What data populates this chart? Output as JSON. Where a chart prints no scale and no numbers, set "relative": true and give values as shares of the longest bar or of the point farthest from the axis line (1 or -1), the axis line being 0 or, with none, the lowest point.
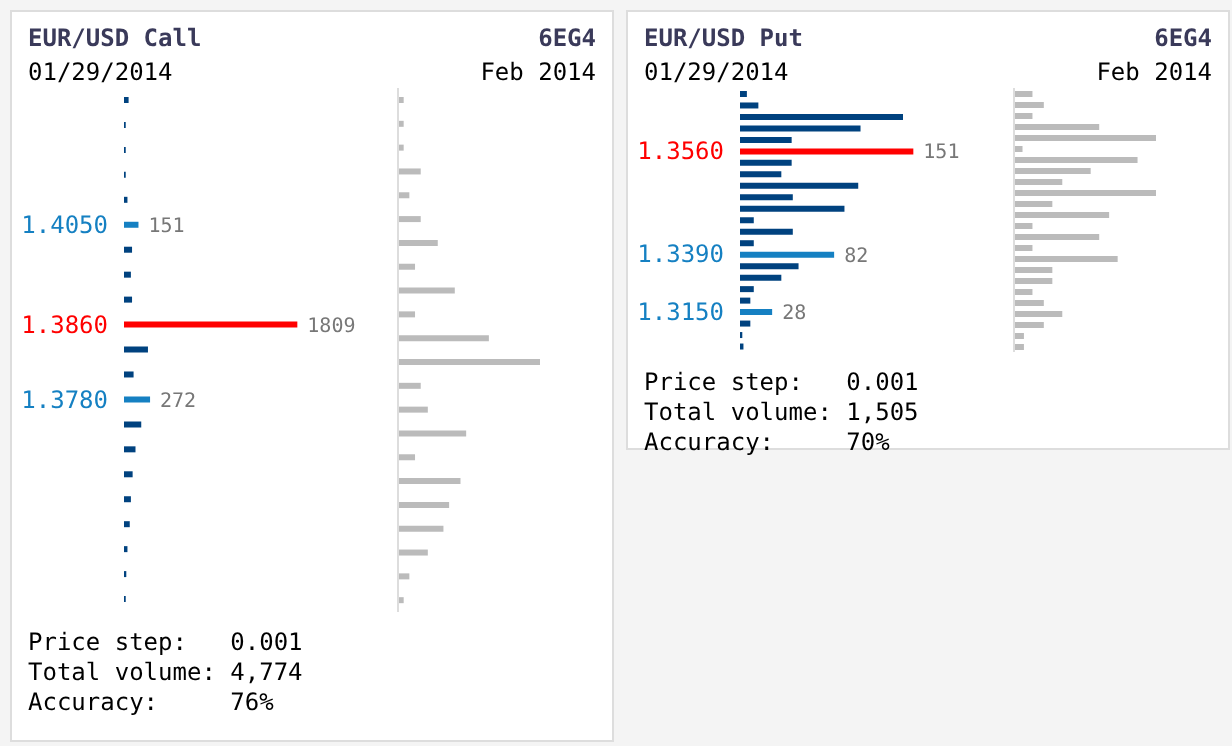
{
  "chart_data": [
    {
      "type": "bar",
      "orientation": "horizontal",
      "title": "EUR/USD Call",
      "subtitle": "01/29/2014",
      "annotations": [
        "6EG4",
        "Feb 2014",
        "Price step:   0.001",
        "Total volume: 4,774",
        "Accuracy:     76%"
      ],
      "tick_labels": "y",
      "categories": [
        null,
        null,
        null,
        null,
        null,
        "1.4050",
        null,
        null,
        null,
        "1.3860",
        null,
        null,
        "1.3780",
        null,
        null,
        null,
        null,
        null,
        null,
        null,
        null
      ],
      "values": [
        48,
        18,
        18,
        18,
        36,
        151,
        84,
        72,
        84,
        1809,
        250,
        100,
        272,
        180,
        120,
        90,
        72,
        60,
        36,
        24,
        18
      ],
      "colors": [
        "#00427f",
        "#00427f",
        "#00427f",
        "#00427f",
        "#00427f",
        "#1580c2",
        "#00427f",
        "#00427f",
        "#00427f",
        "#ff0000",
        "#00427f",
        "#00427f",
        "#1580c2",
        "#00427f",
        "#00427f",
        "#00427f",
        "#00427f",
        "#00427f",
        "#00427f",
        "#00427f",
        "#00427f"
      ],
      "value_labels": [
        null,
        null,
        null,
        null,
        null,
        "151",
        null,
        null,
        null,
        "1809",
        null,
        null,
        "272",
        null,
        null,
        null,
        null,
        null,
        null,
        null,
        null
      ]
    },
    {
      "type": "bar",
      "orientation": "horizontal",
      "relative": true,
      "tick_labels": false,
      "color": "#bbbbbb",
      "categories": [
        null,
        null,
        null,
        null,
        null,
        null,
        null,
        null,
        null,
        null,
        null,
        null,
        null,
        null,
        null,
        null,
        null,
        null,
        null,
        null,
        null,
        null
      ],
      "values": [
        0.04,
        0.04,
        0.04,
        0.16,
        0.08,
        0.16,
        0.28,
        0.12,
        0.4,
        0.12,
        0.64,
        1,
        0.16,
        0.21,
        0.48,
        0.12,
        0.44,
        0.36,
        0.32,
        0.21,
        0.08,
        0.04
      ]
    },
    {
      "type": "bar",
      "orientation": "horizontal",
      "title": "EUR/USD Put",
      "subtitle": "01/29/2014",
      "annotations": [
        "6EG4",
        "Feb 2014",
        "Price step:   0.001",
        "Total volume: 1,505",
        "Accuracy:     70%"
      ],
      "tick_labels": "y",
      "categories": [
        null,
        null,
        null,
        null,
        null,
        "1.3560",
        null,
        null,
        null,
        null,
        null,
        null,
        null,
        null,
        "1.3390",
        null,
        null,
        null,
        null,
        "1.3150",
        null,
        null,
        null
      ],
      "values": [
        6,
        16,
        142,
        105,
        45,
        151,
        45,
        36,
        103,
        46,
        91,
        12,
        46,
        12,
        82,
        51,
        36,
        12,
        9,
        28,
        9,
        2,
        3
      ],
      "colors": [
        "#00427f",
        "#00427f",
        "#00427f",
        "#00427f",
        "#00427f",
        "#ff0000",
        "#00427f",
        "#00427f",
        "#00427f",
        "#00427f",
        "#00427f",
        "#00427f",
        "#00427f",
        "#00427f",
        "#1580c2",
        "#00427f",
        "#00427f",
        "#00427f",
        "#00427f",
        "#1580c2",
        "#00427f",
        "#00427f",
        "#00427f"
      ],
      "value_labels": [
        null,
        null,
        null,
        null,
        null,
        "151",
        null,
        null,
        null,
        null,
        null,
        null,
        null,
        null,
        "82",
        null,
        null,
        null,
        null,
        "28",
        null,
        null,
        null
      ]
    },
    {
      "type": "bar",
      "orientation": "horizontal",
      "relative": true,
      "tick_labels": false,
      "color": "#bbbbbb",
      "categories": [
        null,
        null,
        null,
        null,
        null,
        null,
        null,
        null,
        null,
        null,
        null,
        null,
        null,
        null,
        null,
        null,
        null,
        null,
        null,
        null,
        null,
        null,
        null,
        null
      ],
      "values": [
        0.13,
        0.21,
        0.13,
        0.6,
        1,
        0.06,
        0.87,
        0.54,
        0.34,
        1,
        0.27,
        0.67,
        0.13,
        0.6,
        0.13,
        0.73,
        0.27,
        0.27,
        0.13,
        0.21,
        0.34,
        0.21,
        0.07,
        0.07
      ]
    }
  ]
}
